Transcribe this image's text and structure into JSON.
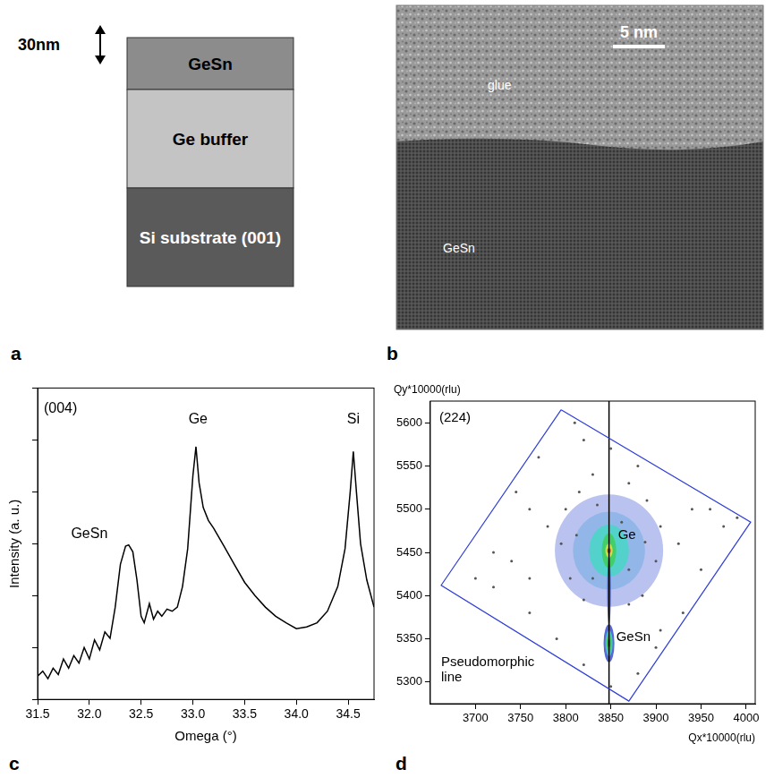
{
  "panel_labels": [
    "a",
    "b",
    "c",
    "d"
  ],
  "schematic": {
    "thickness_label": "30nm",
    "layers": [
      {
        "label": "GeSn",
        "color": "#8c8c8c"
      },
      {
        "label": "Ge buffer",
        "color": "#c4c4c4"
      },
      {
        "label": "Si substrate (001)",
        "color": "#5a5a5a"
      }
    ]
  },
  "tem": {
    "labels": [
      "glue",
      "GeSn"
    ],
    "scale_bar": "5 nm"
  },
  "chart_data": [
    {
      "type": "line",
      "x_label": "Omega (°)",
      "y_label": "Intensity (a. u.)",
      "x": [
        31.5,
        31.55,
        31.6,
        31.65,
        31.7,
        31.75,
        31.8,
        31.85,
        31.9,
        31.95,
        32.0,
        32.05,
        32.1,
        32.15,
        32.2,
        32.25,
        32.3,
        32.35,
        32.38,
        32.42,
        32.46,
        32.5,
        32.53,
        32.58,
        32.62,
        32.66,
        32.7,
        32.75,
        32.8,
        32.85,
        32.9,
        32.95,
        33.0,
        33.03,
        33.06,
        33.1,
        33.15,
        33.2,
        33.3,
        33.4,
        33.5,
        33.6,
        33.7,
        33.8,
        33.9,
        34.0,
        34.1,
        34.2,
        34.3,
        34.4,
        34.47,
        34.52,
        34.55,
        34.58,
        34.62,
        34.68,
        34.75
      ],
      "values": [
        2.8,
        3.5,
        2.5,
        4,
        3,
        6,
        4,
        7,
        5,
        10,
        6,
        14,
        9,
        20,
        15,
        60,
        400,
        900,
        950,
        700,
        200,
        40,
        30,
        70,
        35,
        50,
        40,
        55,
        50,
        60,
        150,
        800,
        20000,
        74000,
        15000,
        5000,
        2800,
        2000,
        900,
        400,
        180,
        100,
        60,
        40,
        30,
        23,
        25,
        30,
        50,
        150,
        800,
        10000,
        60000,
        10000,
        1000,
        200,
        60
      ],
      "color": "#000000",
      "xlim": [
        31.5,
        34.75
      ],
      "xticks": [
        {
          "value": 31.5,
          "label": "31.5"
        },
        {
          "value": 32,
          "label": "32.0"
        },
        {
          "value": 32.5,
          "label": "32.5"
        },
        {
          "value": 33,
          "label": "33.0"
        },
        {
          "value": 33.5,
          "label": "33.5"
        },
        {
          "value": 34,
          "label": "34.0"
        },
        {
          "value": 34.5,
          "label": "34.5"
        }
      ],
      "ylim": [
        1,
        1000000
      ],
      "yticks": [
        1,
        10,
        100,
        1000,
        10000,
        100000,
        1000000
      ],
      "log": "y",
      "grid": false,
      "tick_labels": "x",
      "annotations": [
        {
          "text": "(004)",
          "x": 31.56,
          "y": 400000
        },
        {
          "text": "GeSn",
          "x": 32.0,
          "y": 1500
        },
        {
          "text": "Ge",
          "x": 33.05,
          "y": 250000
        },
        {
          "text": "Si",
          "x": 34.55,
          "y": 250000
        }
      ]
    },
    {
      "type": "contour",
      "x_label": "Qx*10000(rlu)",
      "y_label": "Qy*10000(rlu)",
      "xlim": [
        3650,
        4010
      ],
      "xticks": [
        3700,
        3750,
        3800,
        3850,
        3900,
        3950,
        4000
      ],
      "ylim": [
        5275,
        5625
      ],
      "yticks": [
        5300,
        5350,
        5400,
        5450,
        5500,
        5550,
        5600
      ],
      "grid": false,
      "scan_area": {
        "color": "#2f3fd6",
        "corners": [
          [
            3795,
            5615
          ],
          [
            4005,
            5485
          ],
          [
            3870,
            5278
          ],
          [
            3662,
            5412
          ]
        ]
      },
      "diffuse_points": {
        "color": "#555555",
        "points": [
          [
            3800,
            5500
          ],
          [
            3815,
            5520
          ],
          [
            3830,
            5540
          ],
          [
            3870,
            5530
          ],
          [
            3890,
            5510
          ],
          [
            3905,
            5480
          ],
          [
            3900,
            5440
          ],
          [
            3885,
            5400
          ],
          [
            3870,
            5390
          ],
          [
            3820,
            5395
          ],
          [
            3805,
            5420
          ],
          [
            3795,
            5460
          ],
          [
            3780,
            5480
          ],
          [
            3760,
            5500
          ],
          [
            3925,
            5460
          ],
          [
            3940,
            5500
          ],
          [
            3950,
            5430
          ],
          [
            3760,
            5420
          ],
          [
            3740,
            5440
          ],
          [
            3720,
            5410
          ],
          [
            3700,
            5420
          ],
          [
            3820,
            5580
          ],
          [
            3850,
            5570
          ],
          [
            3880,
            5550
          ],
          [
            3960,
            5500
          ],
          [
            3975,
            5480
          ],
          [
            3930,
            5380
          ],
          [
            3900,
            5340
          ],
          [
            3880,
            5310
          ],
          [
            3820,
            5320
          ],
          [
            3790,
            5350
          ],
          [
            3760,
            5380
          ],
          [
            3720,
            5450
          ],
          [
            3745,
            5520
          ],
          [
            3770,
            5560
          ],
          [
            3990,
            5490
          ],
          [
            3905,
            5360
          ],
          [
            3850,
            5295
          ],
          [
            3810,
            5600
          ],
          [
            3835,
            5505
          ],
          [
            3862,
            5485
          ],
          [
            3830,
            5420
          ],
          [
            3870,
            5430
          ],
          [
            3812,
            5470
          ],
          [
            3888,
            5462
          ]
        ]
      },
      "contours": [
        {
          "x": 3848,
          "y": 5452,
          "rx": 60,
          "ry": 65,
          "color": "#3a4fd0"
        },
        {
          "x": 3848,
          "y": 5452,
          "rx": 40,
          "ry": 45,
          "color": "#4aa0e0"
        },
        {
          "x": 3848,
          "y": 5452,
          "rx": 22,
          "ry": 30,
          "color": "#49d6c6"
        },
        {
          "x": 3848,
          "y": 5452,
          "rx": 8,
          "ry": 20,
          "color": "#3fcf5a"
        },
        {
          "x": 3848,
          "y": 5452,
          "rx": 4,
          "ry": 8,
          "color": "#e8e040"
        },
        {
          "x": 3848,
          "y": 5452,
          "rx": 2,
          "ry": 3,
          "color": "#e02020"
        },
        {
          "x": 3848,
          "y": 5405,
          "rx": 2,
          "ry": 40,
          "color": "#3a4fd0"
        },
        {
          "x": 3848,
          "y": 5345,
          "rx": 6,
          "ry": 22,
          "color": "#3a4fd0"
        },
        {
          "x": 3848,
          "y": 5345,
          "rx": 4,
          "ry": 15,
          "color": "#49d6c6"
        },
        {
          "x": 3848,
          "y": 5345,
          "rx": 3,
          "ry": 10,
          "color": "#3fcf5a"
        },
        {
          "x": 3848,
          "y": 5345,
          "rx": 1.5,
          "ry": 5,
          "color": "#1f7a6a"
        }
      ],
      "pseudomorphic_line": {
        "qx": 3848,
        "color": "#000000"
      },
      "annotations": [
        {
          "text": "(224)",
          "x": 3660,
          "y": 5605
        },
        {
          "text": "Ge",
          "x": 3858,
          "y": 5470
        },
        {
          "text": "GeSn",
          "x": 3856,
          "y": 5352
        },
        {
          "text": "Pseudomorphic line",
          "x": 3662,
          "y": 5305
        }
      ]
    }
  ]
}
